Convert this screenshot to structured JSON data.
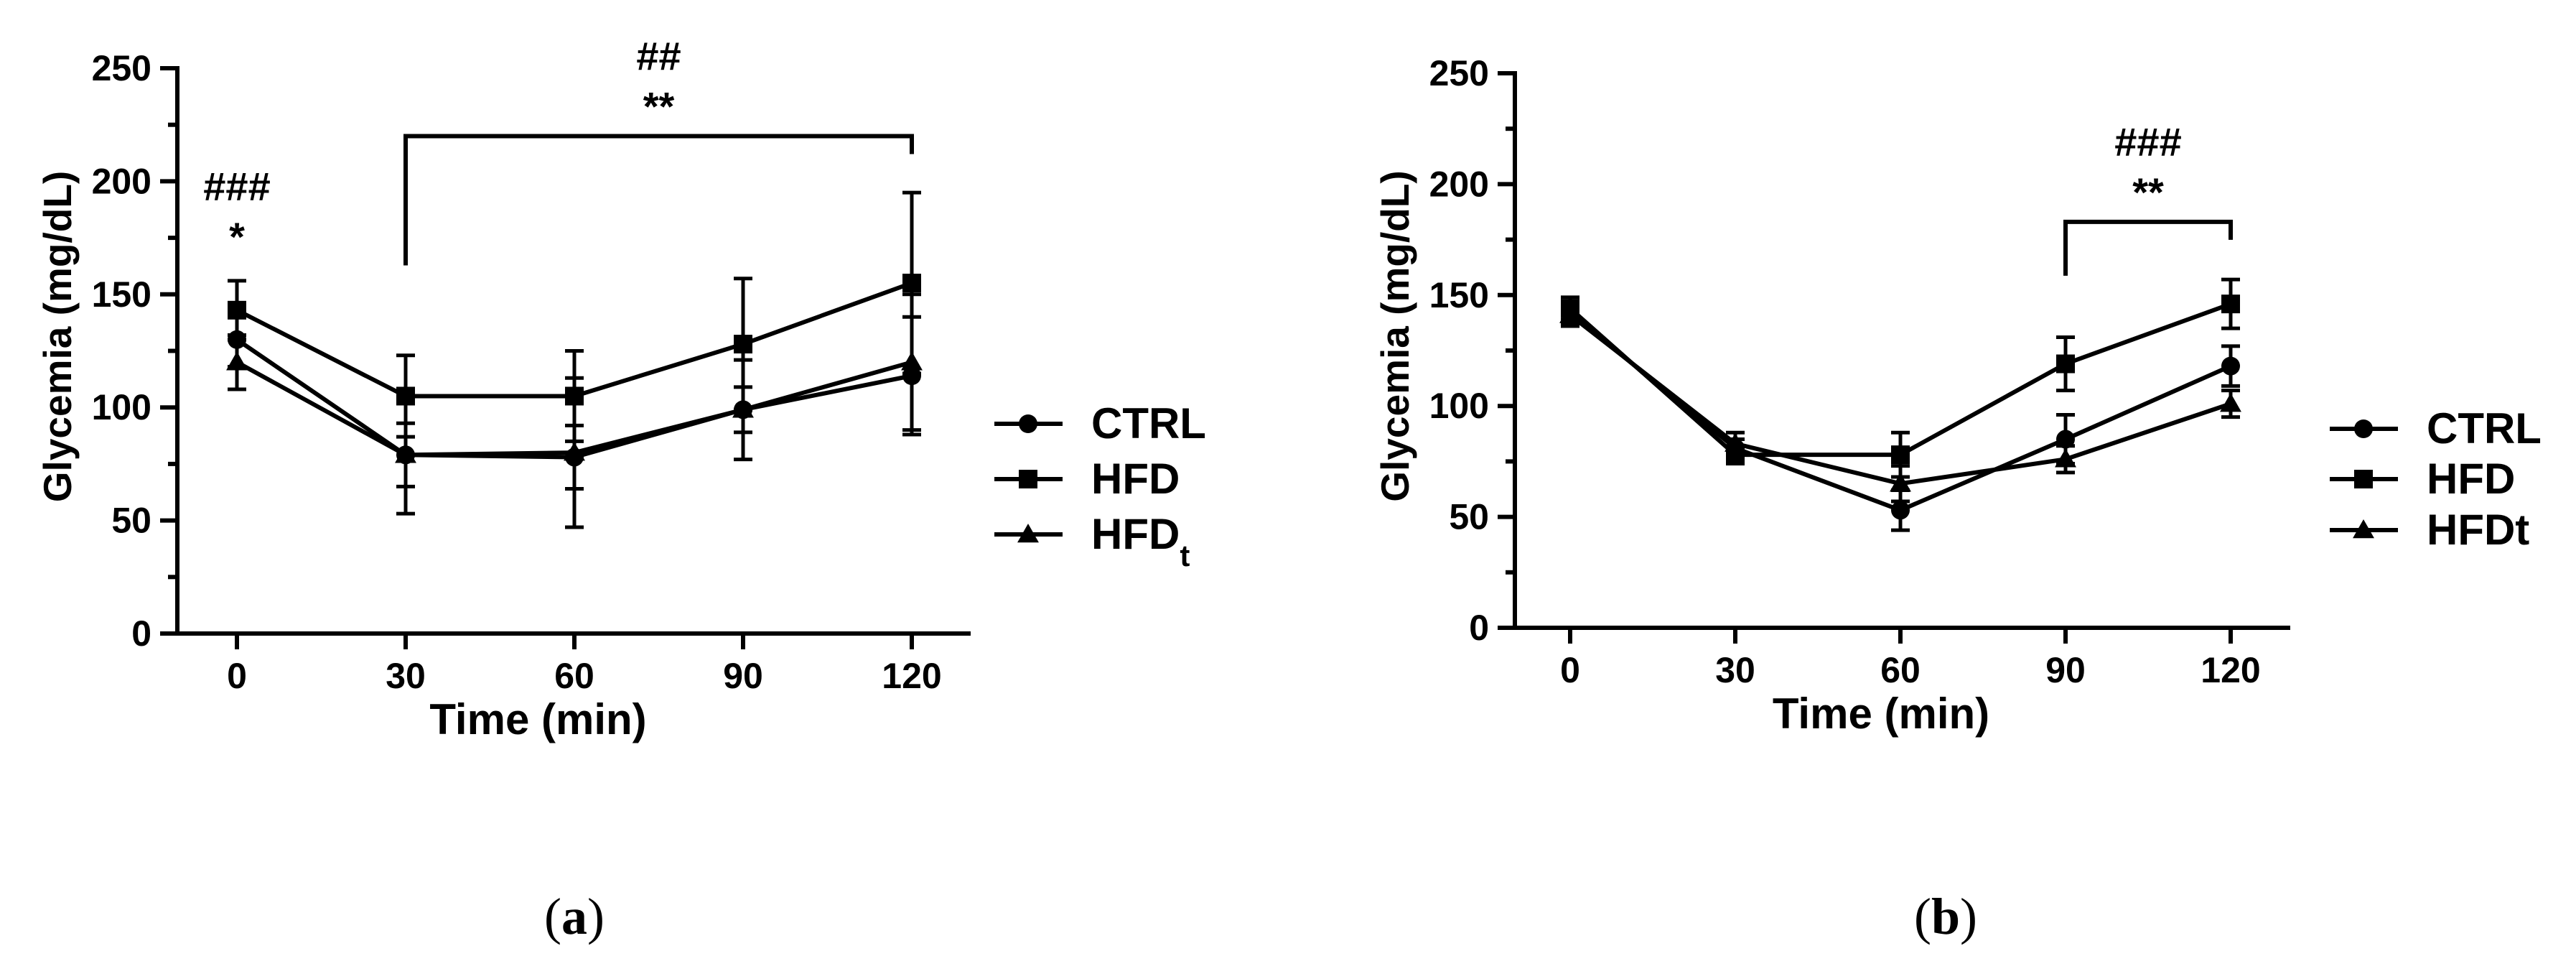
{
  "chart_data": [
    {
      "panel_label": "(a)",
      "type": "line",
      "xlabel": "Time (min)",
      "ylabel": "Glycemia (mg/dL)",
      "x": [
        0,
        30,
        60,
        90,
        120
      ],
      "xticks": [
        "0",
        "30",
        "60",
        "90",
        "120"
      ],
      "yticks": [
        "0",
        "50",
        "100",
        "150",
        "200",
        "250"
      ],
      "ylim": [
        0,
        250
      ],
      "grid": false,
      "legend_position": "right",
      "series": [
        {
          "name": "CTRL",
          "marker": "circle",
          "values": [
            130,
            79,
            78,
            99,
            114
          ],
          "errors": [
            12,
            14,
            14,
            10,
            26
          ]
        },
        {
          "name": "HFD",
          "marker": "square",
          "values": [
            143,
            105,
            105,
            128,
            155
          ],
          "errors": [
            13,
            18,
            20,
            29,
            40
          ]
        },
        {
          "name": "HFDt",
          "legend_html": "HFD<tspan baseline-shift=\"sub\" font-size=\"70%\">t</tspan>",
          "marker": "triangle",
          "values": [
            120,
            79,
            80,
            99,
            120
          ],
          "errors": [
            12,
            26,
            33,
            22,
            30
          ]
        }
      ],
      "annotations": [
        {
          "lines": [
            "###",
            "*"
          ],
          "x": 0
        },
        {
          "lines": [
            "##",
            "**"
          ],
          "bracket": [
            30,
            120
          ],
          "bracket_y": 220
        }
      ]
    },
    {
      "panel_label": "(b)",
      "type": "line",
      "xlabel": "Time (min)",
      "ylabel": "Glycemia (mg/dL)",
      "x": [
        0,
        30,
        60,
        90,
        120
      ],
      "xticks": [
        "0",
        "30",
        "60",
        "90",
        "120"
      ],
      "yticks": [
        "0",
        "50",
        "100",
        "150",
        "200",
        "250"
      ],
      "ylim": [
        0,
        250
      ],
      "grid": false,
      "legend_position": "right",
      "series": [
        {
          "name": "CTRL",
          "marker": "circle",
          "values": [
            142,
            81,
            53,
            85,
            118
          ],
          "errors": [
            5,
            4,
            9,
            11,
            9
          ]
        },
        {
          "name": "HFD",
          "marker": "square",
          "values": [
            144,
            78,
            78,
            119,
            146
          ],
          "errors": [
            5,
            4,
            10,
            12,
            11
          ]
        },
        {
          "name": "HFDt",
          "legend_html": "HFDt",
          "marker": "triangle",
          "values": [
            141,
            83,
            65,
            76,
            101
          ],
          "errors": [
            5,
            5,
            8,
            6,
            6
          ]
        }
      ],
      "annotations": [
        {
          "lines": [
            "###",
            "**"
          ],
          "bracket": [
            90,
            120
          ],
          "bracket_y": 183
        }
      ]
    }
  ]
}
